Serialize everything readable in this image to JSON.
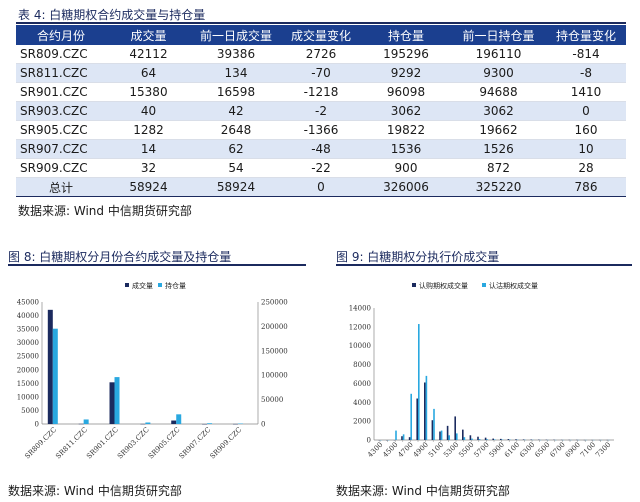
{
  "table": {
    "title": "表 4:  白糖期权合约成交量与持仓量",
    "headers": [
      "合约月份",
      "成交量",
      "前一日成交量",
      "成交量变化",
      "持仓量",
      "前一日持仓量",
      "持仓量变化"
    ],
    "rows": [
      [
        "SR809.CZC",
        "42112",
        "39386",
        "2726",
        "195296",
        "196110",
        "-814"
      ],
      [
        "SR811.CZC",
        "64",
        "134",
        "-70",
        "9292",
        "9300",
        "-8"
      ],
      [
        "SR901.CZC",
        "15380",
        "16598",
        "-1218",
        "96098",
        "94688",
        "1410"
      ],
      [
        "SR903.CZC",
        "40",
        "42",
        "-2",
        "3062",
        "3062",
        "0"
      ],
      [
        "SR905.CZC",
        "1282",
        "2648",
        "-1366",
        "19822",
        "19662",
        "160"
      ],
      [
        "SR907.CZC",
        "14",
        "62",
        "-48",
        "1536",
        "1526",
        "10"
      ],
      [
        "SR909.CZC",
        "32",
        "54",
        "-22",
        "900",
        "872",
        "28"
      ],
      [
        "总计",
        "58924",
        "58924",
        "0",
        "326006",
        "325220",
        "786"
      ]
    ],
    "source": "数据来源:  Wind  中信期货研究部"
  },
  "colors": {
    "header_bg": "#1b3f8f",
    "alt_row": "#dde6f5",
    "series_dark": "#1b2a5e",
    "series_light": "#29a8e0"
  },
  "chart_data": [
    {
      "type": "bar",
      "figure_title": "图 8:  白糖期权分月份合约成交量及持仓量",
      "categories": [
        "SR809.CZC",
        "SR811.CZC",
        "SR901.CZC",
        "SR903.CZC",
        "SR905.CZC",
        "SR907.CZC",
        "SR909.CZC"
      ],
      "series": [
        {
          "name": "成交量",
          "axis": "left",
          "values": [
            42112,
            64,
            15380,
            40,
            1282,
            14,
            32
          ]
        },
        {
          "name": "持仓量",
          "axis": "right",
          "values": [
            195296,
            9292,
            96098,
            3062,
            19822,
            1536,
            900
          ]
        }
      ],
      "ylim_left": [
        0,
        45000
      ],
      "yticks_left": [
        "0",
        "5000",
        "10000",
        "15000",
        "20000",
        "25000",
        "30000",
        "35000",
        "40000",
        "45000"
      ],
      "ylim_right": [
        0,
        250000
      ],
      "yticks_right": [
        "0",
        "50000",
        "100000",
        "150000",
        "200000",
        "250000"
      ],
      "legend": "top",
      "grid": false,
      "source": "数据来源:  Wind  中信期货研究部"
    },
    {
      "type": "bar",
      "figure_title": "图 9:  白糖期权分执行价成交量",
      "x": [
        4300,
        4400,
        4500,
        4600,
        4700,
        4800,
        4900,
        5000,
        5100,
        5200,
        5300,
        5400,
        5500,
        5600,
        5700,
        5800,
        5900,
        6000,
        6100,
        6200,
        6300,
        6400,
        6500,
        6600,
        6700,
        6800,
        6900,
        7000,
        7100,
        7200,
        7300
      ],
      "xticks": [
        "4300",
        "4500",
        "4700",
        "4900",
        "5100",
        "5300",
        "5500",
        "5700",
        "5900",
        "6100",
        "6300",
        "6500",
        "6700",
        "6900",
        "7100",
        "7300"
      ],
      "series": [
        {
          "name": "认购期权成交量",
          "values": [
            0,
            0,
            0,
            400,
            300,
            4400,
            6100,
            2100,
            900,
            1500,
            2500,
            1100,
            500,
            350,
            250,
            150,
            120,
            100,
            80,
            60,
            50,
            40,
            30,
            30,
            20,
            20,
            20,
            10,
            10,
            10,
            10
          ]
        },
        {
          "name": "认沽期权成交量",
          "values": [
            0,
            0,
            1000,
            600,
            4900,
            12300,
            6800,
            3300,
            1000,
            500,
            700,
            300,
            150,
            100,
            80,
            60,
            50,
            40,
            30,
            20,
            20,
            10,
            10,
            10,
            10,
            10,
            10,
            10,
            10,
            10,
            10
          ]
        }
      ],
      "ylim": [
        0,
        14000
      ],
      "yticks": [
        "0",
        "2000",
        "4000",
        "6000",
        "8000",
        "10000",
        "12000",
        "14000"
      ],
      "legend": "top",
      "grid": false,
      "source": "数据来源:  Wind  中信期货研究部"
    }
  ]
}
